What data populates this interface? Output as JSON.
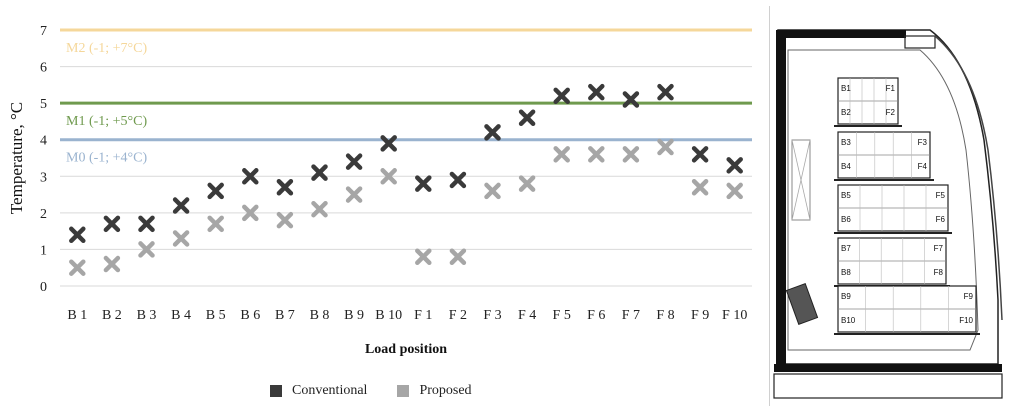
{
  "chart_data": {
    "type": "scatter",
    "ylabel": "Temperature, °C",
    "xlabel": "Load position",
    "ylim": [
      0,
      7
    ],
    "yticks": [
      0,
      1,
      2,
      3,
      4,
      5,
      6,
      7
    ],
    "grid": true,
    "categories": [
      "B 1",
      "B 2",
      "B 3",
      "B 4",
      "B 5",
      "B 6",
      "B 7",
      "B 8",
      "B 9",
      "B 10",
      "F 1",
      "F 2",
      "F 3",
      "F 4",
      "F 5",
      "F 6",
      "F 7",
      "F 8",
      "F 9",
      "F 10"
    ],
    "series": [
      {
        "name": "Conventional",
        "color": "#3a3a3a",
        "values": [
          1.4,
          1.7,
          1.7,
          2.2,
          2.6,
          3.0,
          2.7,
          3.1,
          3.4,
          3.9,
          2.8,
          2.9,
          4.2,
          4.6,
          5.2,
          5.3,
          5.1,
          5.3,
          3.6,
          3.3
        ]
      },
      {
        "name": "Proposed",
        "color": "#a6a6a6",
        "values": [
          0.5,
          0.6,
          1.0,
          1.3,
          1.7,
          2.0,
          1.8,
          2.1,
          2.5,
          3.0,
          0.8,
          0.8,
          2.6,
          2.8,
          3.6,
          3.6,
          3.6,
          3.8,
          2.7,
          2.6
        ]
      }
    ],
    "reference_lines": [
      {
        "label": "M2 (-1; +7°C)",
        "value": 7,
        "color": "#f5d79a"
      },
      {
        "label": "M1 (-1; +5°C)",
        "value": 5,
        "color": "#6f9a4e"
      },
      {
        "label": "M0 (-1; +4°C)",
        "value": 4,
        "color": "#9ab3cf"
      }
    ],
    "legend_position": "bottom"
  },
  "diagram": {
    "shelf_labels": [
      {
        "back": "B1",
        "front": "F1"
      },
      {
        "back": "B2",
        "front": "F2"
      },
      {
        "back": "B3",
        "front": "F3"
      },
      {
        "back": "B4",
        "front": "F4"
      },
      {
        "back": "B5",
        "front": "F5"
      },
      {
        "back": "B6",
        "front": "F6"
      },
      {
        "back": "B7",
        "front": "F7"
      },
      {
        "back": "B8",
        "front": "F8"
      },
      {
        "back": "B9",
        "front": "F9"
      },
      {
        "back": "B10",
        "front": "F10"
      }
    ]
  }
}
